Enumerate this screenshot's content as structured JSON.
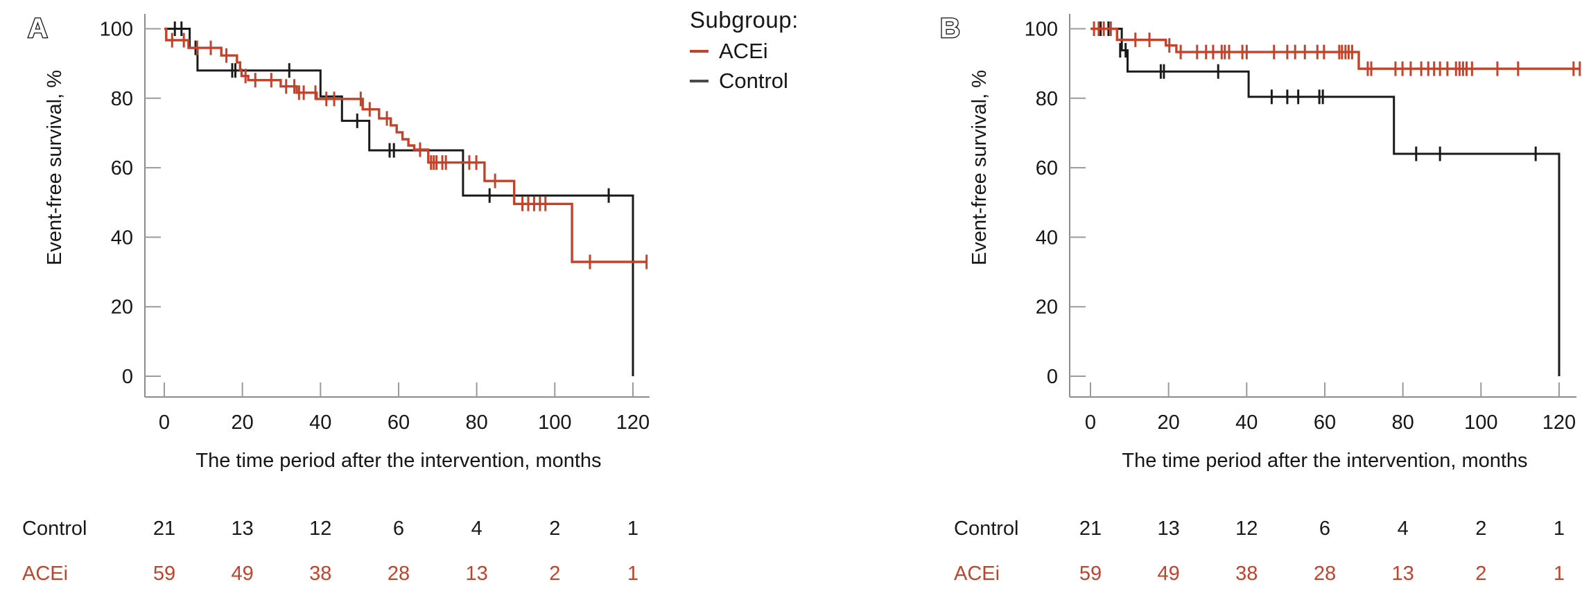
{
  "figure": {
    "panels": [
      {
        "label": "A"
      },
      {
        "label": "B"
      }
    ],
    "legend": {
      "title": "Subgroup:",
      "items": [
        {
          "label": "ACEi",
          "color": "#c2432a"
        },
        {
          "label": "Control",
          "color": "#4a4a4a"
        }
      ]
    },
    "colors": {
      "acei": "#c2432a",
      "control": "#1a1a1a",
      "axis": "#8c8c8c",
      "tick": "#9a9a9a",
      "text": "#161616"
    }
  },
  "chart_data": [
    {
      "type": "line",
      "subtype": "kaplan-meier-step",
      "panel": "A",
      "xlabel": "The time period after the intervention, months",
      "ylabel": "Event-free survival, %",
      "xlim": [
        0,
        124
      ],
      "ylim": [
        0,
        100
      ],
      "xticks": [
        0,
        20,
        40,
        60,
        80,
        100,
        120
      ],
      "yticks": [
        0,
        20,
        40,
        60,
        80,
        100
      ],
      "grid": false,
      "legend_position": "top-right-outside",
      "series": [
        {
          "name": "ACEi",
          "color": "#c2432a",
          "steps": [
            [
              0,
              100
            ],
            [
              0.5,
              100
            ],
            [
              0.5,
              96.7
            ],
            [
              6.2,
              96.7
            ],
            [
              6.2,
              94.5
            ],
            [
              14.6,
              94.5
            ],
            [
              14.6,
              92.3
            ],
            [
              18.6,
              92.3
            ],
            [
              18.6,
              90.3
            ],
            [
              19.4,
              90.3
            ],
            [
              19.4,
              88.2
            ],
            [
              19.8,
              88.2
            ],
            [
              19.8,
              86.4
            ],
            [
              21.5,
              86.4
            ],
            [
              21.5,
              85.2
            ],
            [
              29.8,
              85.2
            ],
            [
              29.8,
              83.4
            ],
            [
              33.9,
              83.4
            ],
            [
              33.9,
              81.6
            ],
            [
              39,
              81.6
            ],
            [
              39,
              79.8
            ],
            [
              50.8,
              79.8
            ],
            [
              50.8,
              76.8
            ],
            [
              55,
              76.8
            ],
            [
              55,
              74.2
            ],
            [
              58,
              74.2
            ],
            [
              58,
              72.2
            ],
            [
              59.5,
              72.2
            ],
            [
              59.5,
              70.2
            ],
            [
              61,
              70.2
            ],
            [
              61,
              68.2
            ],
            [
              62.5,
              68.2
            ],
            [
              62.5,
              66.4
            ],
            [
              64,
              66.4
            ],
            [
              64,
              65.2
            ],
            [
              67.6,
              65.2
            ],
            [
              67.6,
              61.5
            ],
            [
              82,
              61.5
            ],
            [
              82,
              56.2
            ],
            [
              89.6,
              56.2
            ],
            [
              89.6,
              49.6
            ],
            [
              104.4,
              49.6
            ],
            [
              104.4,
              32.9
            ],
            [
              123.5,
              32.9
            ]
          ],
          "censors": [
            [
              2,
              96.7
            ],
            [
              5,
              96.7
            ],
            [
              8.4,
              94.5
            ],
            [
              11.9,
              94.5
            ],
            [
              15.9,
              92.3
            ],
            [
              20.8,
              86.4
            ],
            [
              23.3,
              85.2
            ],
            [
              27.4,
              85.2
            ],
            [
              31.2,
              83.4
            ],
            [
              33.3,
              83.4
            ],
            [
              34.5,
              81.6
            ],
            [
              35.7,
              81.6
            ],
            [
              38.7,
              81.6
            ],
            [
              41.5,
              79.8
            ],
            [
              43.5,
              79.8
            ],
            [
              50.3,
              79.8
            ],
            [
              52.6,
              76.8
            ],
            [
              57,
              74.2
            ],
            [
              65.5,
              65.2
            ],
            [
              68.3,
              61.5
            ],
            [
              69,
              61.5
            ],
            [
              69.7,
              61.5
            ],
            [
              71.2,
              61.5
            ],
            [
              72.1,
              61.5
            ],
            [
              78.1,
              61.5
            ],
            [
              79.9,
              61.5
            ],
            [
              84.7,
              56.2
            ],
            [
              91.7,
              49.6
            ],
            [
              93.2,
              49.6
            ],
            [
              94.7,
              49.6
            ],
            [
              96.2,
              49.6
            ],
            [
              97.6,
              49.6
            ],
            [
              109,
              32.9
            ],
            [
              123.5,
              32.9
            ]
          ]
        },
        {
          "name": "Control",
          "color": "#1a1a1a",
          "steps": [
            [
              0,
              100
            ],
            [
              6.5,
              100
            ],
            [
              6.5,
              94.5
            ],
            [
              8.5,
              94.5
            ],
            [
              8.5,
              88
            ],
            [
              40,
              88
            ],
            [
              40,
              80.5
            ],
            [
              45.5,
              80.5
            ],
            [
              45.5,
              73.5
            ],
            [
              52.5,
              73.5
            ],
            [
              52.5,
              65
            ],
            [
              76.5,
              65
            ],
            [
              76.5,
              52
            ],
            [
              120,
              52
            ],
            [
              120,
              0
            ]
          ],
          "censors": [
            [
              2.7,
              100
            ],
            [
              4.4,
              100
            ],
            [
              8,
              94.5
            ],
            [
              17.4,
              88
            ],
            [
              18.2,
              88
            ],
            [
              32,
              88
            ],
            [
              49.4,
              73.5
            ],
            [
              57.7,
              65
            ],
            [
              58.8,
              65
            ],
            [
              83.3,
              52
            ],
            [
              113.8,
              52
            ]
          ]
        }
      ],
      "risk_table": {
        "times": [
          0,
          20,
          40,
          60,
          80,
          100,
          120
        ],
        "rows": [
          {
            "label": "Control",
            "color": "#1a1a1a",
            "values": [
              "21",
              "13",
              "12",
              "6",
              "4",
              "2",
              "1"
            ]
          },
          {
            "label": "ACEi",
            "color": "#c2432a",
            "values": [
              "59",
              "49",
              "38",
              "28",
              "13",
              "2",
              "1"
            ]
          }
        ]
      }
    },
    {
      "type": "line",
      "subtype": "kaplan-meier-step",
      "panel": "B",
      "xlabel": "The time period after the intervention, months",
      "ylabel": "Event-free survival, %",
      "xlim": [
        0,
        126
      ],
      "ylim": [
        0,
        100
      ],
      "xticks": [
        0,
        20,
        40,
        60,
        80,
        100,
        120
      ],
      "yticks": [
        0,
        20,
        40,
        60,
        80,
        100
      ],
      "grid": false,
      "legend_position": "none",
      "series": [
        {
          "name": "ACEi",
          "color": "#c2432a",
          "steps": [
            [
              0,
              100
            ],
            [
              6.8,
              100
            ],
            [
              6.8,
              96.8
            ],
            [
              19.3,
              96.8
            ],
            [
              19.3,
              95.2
            ],
            [
              22,
              95.2
            ],
            [
              22,
              93.3
            ],
            [
              68.7,
              93.3
            ],
            [
              68.7,
              88.5
            ],
            [
              125.5,
              88.5
            ]
          ],
          "censors": [
            [
              0.9,
              100
            ],
            [
              2.1,
              100
            ],
            [
              3.4,
              100
            ],
            [
              5.2,
              100
            ],
            [
              11.5,
              96.8
            ],
            [
              15.1,
              96.8
            ],
            [
              20.2,
              95.2
            ],
            [
              23.1,
              93.3
            ],
            [
              27.3,
              93.3
            ],
            [
              29.6,
              93.3
            ],
            [
              31.4,
              93.3
            ],
            [
              33.6,
              93.3
            ],
            [
              34.4,
              93.3
            ],
            [
              35.5,
              93.3
            ],
            [
              38.9,
              93.3
            ],
            [
              40,
              93.3
            ],
            [
              47,
              93.3
            ],
            [
              50.4,
              93.3
            ],
            [
              52.4,
              93.3
            ],
            [
              54.9,
              93.3
            ],
            [
              58.1,
              93.3
            ],
            [
              59.8,
              93.3
            ],
            [
              63.7,
              93.3
            ],
            [
              64.4,
              93.3
            ],
            [
              65.3,
              93.3
            ],
            [
              66.1,
              93.3
            ],
            [
              67,
              93.3
            ],
            [
              71,
              88.5
            ],
            [
              71.9,
              88.5
            ],
            [
              78.1,
              88.5
            ],
            [
              79.9,
              88.5
            ],
            [
              82,
              88.5
            ],
            [
              84.7,
              88.5
            ],
            [
              86.5,
              88.5
            ],
            [
              88,
              88.5
            ],
            [
              89.5,
              88.5
            ],
            [
              91.4,
              88.5
            ],
            [
              93.6,
              88.5
            ],
            [
              94.5,
              88.5
            ],
            [
              95.4,
              88.5
            ],
            [
              96.3,
              88.5
            ],
            [
              97.7,
              88.5
            ],
            [
              104.2,
              88.5
            ],
            [
              109.5,
              88.5
            ],
            [
              123.7,
              88.5
            ],
            [
              125.3,
              88.5
            ]
          ]
        },
        {
          "name": "Control",
          "color": "#1a1a1a",
          "steps": [
            [
              0,
              100
            ],
            [
              8,
              100
            ],
            [
              8,
              93.8
            ],
            [
              9.5,
              93.8
            ],
            [
              9.5,
              87.7
            ],
            [
              40.5,
              87.7
            ],
            [
              40.5,
              80.4
            ],
            [
              77.7,
              80.4
            ],
            [
              77.7,
              64
            ],
            [
              120,
              64
            ],
            [
              120,
              0
            ]
          ],
          "censors": [
            [
              2.6,
              100
            ],
            [
              4.6,
              100
            ],
            [
              7.6,
              93.8
            ],
            [
              9,
              93.8
            ],
            [
              18,
              87.7
            ],
            [
              18.8,
              87.7
            ],
            [
              32.7,
              87.7
            ],
            [
              46.4,
              80.4
            ],
            [
              50.4,
              80.4
            ],
            [
              53.2,
              80.4
            ],
            [
              58.6,
              80.4
            ],
            [
              59.5,
              80.4
            ],
            [
              83.4,
              64
            ],
            [
              89.5,
              64
            ],
            [
              114,
              64
            ]
          ]
        }
      ],
      "risk_table": {
        "times": [
          0,
          20,
          40,
          60,
          80,
          100,
          120
        ],
        "rows": [
          {
            "label": "Control",
            "color": "#1a1a1a",
            "values": [
              "21",
              "13",
              "12",
              "6",
              "4",
              "2",
              "1"
            ]
          },
          {
            "label": "ACEi",
            "color": "#c2432a",
            "values": [
              "59",
              "49",
              "38",
              "28",
              "13",
              "2",
              "1"
            ]
          }
        ]
      }
    }
  ]
}
